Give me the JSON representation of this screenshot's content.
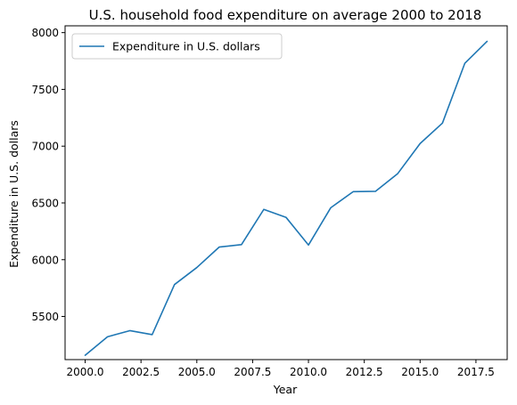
{
  "chart_data": {
    "type": "line",
    "title": "U.S. household food expenditure on average 2000 to 2018",
    "xlabel": "Year",
    "ylabel": "Expenditure in U.S. dollars",
    "xlim": [
      1999.1,
      2018.9
    ],
    "ylim": [
      5120,
      8060
    ],
    "xticks": [
      2000.0,
      2002.5,
      2005.0,
      2007.5,
      2010.0,
      2012.5,
      2015.0,
      2017.5
    ],
    "xtick_labels": [
      "2000.0",
      "2002.5",
      "2005.0",
      "2007.5",
      "2010.0",
      "2012.5",
      "2015.0",
      "2017.5"
    ],
    "yticks": [
      5500,
      6000,
      6500,
      7000,
      7500,
      8000
    ],
    "ytick_labels": [
      "5500",
      "6000",
      "6500",
      "7000",
      "7500",
      "8000"
    ],
    "grid": false,
    "legend_position": "top-left",
    "series": [
      {
        "name": "Expenditure in U.S. dollars",
        "color": "#1f77b4",
        "x": [
          2000,
          2001,
          2002,
          2003,
          2004,
          2005,
          2006,
          2007,
          2008,
          2009,
          2010,
          2011,
          2012,
          2013,
          2014,
          2015,
          2016,
          2017,
          2018
        ],
        "y": [
          5158,
          5321,
          5375,
          5340,
          5781,
          5931,
          6111,
          6133,
          6443,
          6372,
          6129,
          6458,
          6599,
          6602,
          6759,
          7023,
          7203,
          7729,
          7923
        ]
      }
    ]
  }
}
